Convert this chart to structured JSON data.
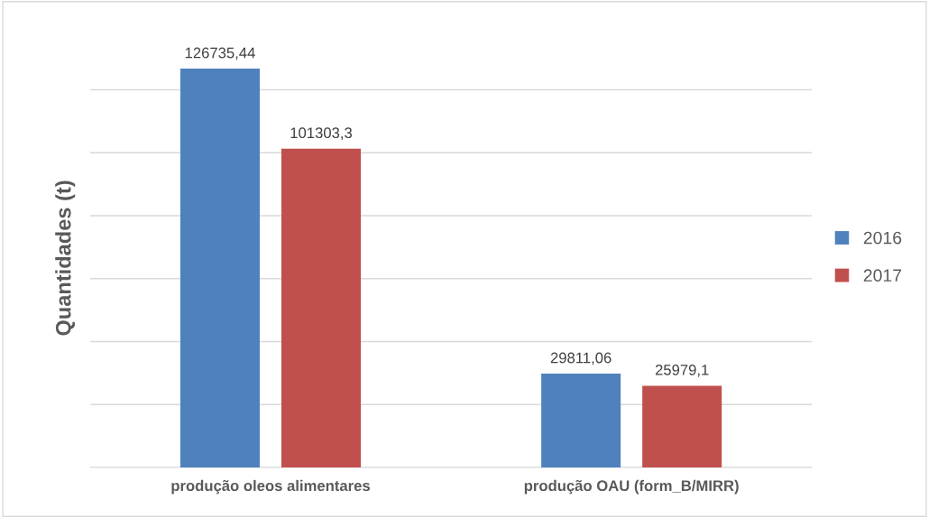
{
  "chart_data": {
    "type": "bar",
    "ylabel": "Quantidades (t)",
    "categories": [
      "produção oleos alimentares",
      "produção OAU (form_B/MIRR)"
    ],
    "series": [
      {
        "name": "2016",
        "color": "#4f81bd",
        "values": [
          126735.44,
          29811.06
        ],
        "value_labels": [
          "126735,44",
          "29811,06"
        ]
      },
      {
        "name": "2017",
        "color": "#c0504d",
        "values": [
          101303.3,
          25979.1
        ],
        "value_labels": [
          "101303,3",
          "25979,1"
        ]
      }
    ],
    "yticks": [
      {
        "value": 0,
        "label": null
      },
      {
        "value": 20000,
        "label": null
      },
      {
        "value": 40000,
        "label": null
      },
      {
        "value": 60000,
        "label": null
      },
      {
        "value": 80000,
        "label": null
      },
      {
        "value": 100000,
        "label": null
      },
      {
        "value": 120000,
        "label": null
      }
    ],
    "grid": "y",
    "legend": "right",
    "tick_labels": "x"
  }
}
